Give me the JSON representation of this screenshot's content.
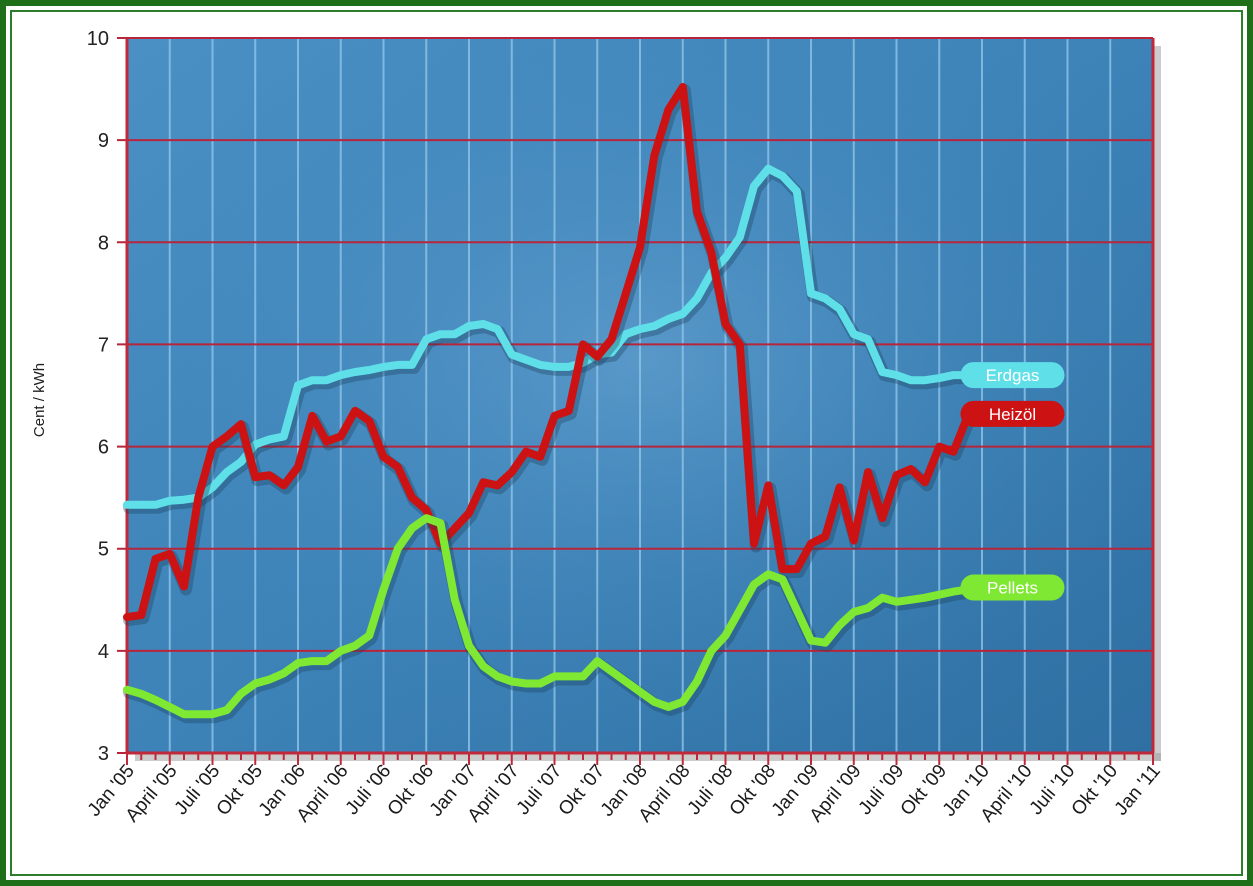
{
  "chart_data": {
    "type": "line",
    "ylabel": "Cent / kWh",
    "ylim": [
      3,
      10
    ],
    "yticks": [
      3,
      4,
      5,
      6,
      7,
      8,
      9,
      10
    ],
    "xticks": [
      "Jan '05",
      "April '05",
      "Juli '05",
      "Okt '05",
      "Jan '06",
      "April '06",
      "Juli '06",
      "Okt '06",
      "Jan '07",
      "April '07",
      "Juli '07",
      "Okt '07",
      "Jan '08",
      "April '08",
      "Juli '08",
      "Okt '08",
      "Jan '09",
      "April '09",
      "Juli '09",
      "Okt '09",
      "Jan '10",
      "April '10",
      "Juli '10",
      "Okt '10",
      "Jan '11"
    ],
    "grid": true,
    "colors": {
      "plot_bg": "#3d83b8",
      "grid_h": "#b8243a",
      "grid_v": "#8fc4ea",
      "axis": "#c0283c",
      "frame": "#1f6e1a"
    },
    "series": [
      {
        "name": "Erdgas",
        "color": "#5fe0e8",
        "x": [
          0,
          1,
          2,
          3,
          4,
          5,
          6,
          7,
          8,
          9,
          10,
          11,
          12,
          13,
          14,
          15,
          16,
          17,
          18,
          19,
          20,
          21,
          22,
          23,
          24,
          25,
          26,
          27,
          28,
          29,
          30,
          31,
          32,
          33,
          34,
          35,
          36,
          37,
          38,
          39,
          40,
          41,
          42,
          43,
          44,
          45,
          46,
          47,
          48,
          49,
          50,
          51,
          52,
          53,
          54,
          55,
          56,
          57,
          58,
          59,
          60,
          61,
          62,
          63
        ],
        "values": [
          5.43,
          5.43,
          5.43,
          5.47,
          5.48,
          5.5,
          5.6,
          5.75,
          5.85,
          6.02,
          6.07,
          6.1,
          6.6,
          6.65,
          6.65,
          6.7,
          6.73,
          6.75,
          6.78,
          6.8,
          6.8,
          7.05,
          7.1,
          7.1,
          7.18,
          7.2,
          7.15,
          6.9,
          6.85,
          6.8,
          6.78,
          6.78,
          6.82,
          6.9,
          6.92,
          7.1,
          7.15,
          7.18,
          7.25,
          7.3,
          7.45,
          7.7,
          7.85,
          8.05,
          8.55,
          8.72,
          8.65,
          8.5,
          7.5,
          7.45,
          7.35,
          7.1,
          7.05,
          6.73,
          6.7,
          6.65,
          6.65,
          6.67,
          6.7,
          6.7,
          6.7,
          6.7,
          6.7,
          6.7
        ],
        "label_x": 62
      },
      {
        "name": "Heizöl",
        "color": "#cc1212",
        "x": [
          0,
          1,
          2,
          3,
          4,
          5,
          6,
          7,
          8,
          9,
          10,
          11,
          12,
          13,
          14,
          15,
          16,
          17,
          18,
          19,
          20,
          21,
          22,
          23,
          24,
          25,
          26,
          27,
          28,
          29,
          30,
          31,
          32,
          33,
          34,
          35,
          36,
          37,
          38,
          39,
          40,
          41,
          42,
          43,
          44,
          45,
          46,
          47,
          48,
          49,
          50,
          51,
          52,
          53,
          54,
          55,
          56,
          57,
          58,
          59,
          60,
          61,
          62,
          63
        ],
        "values": [
          4.33,
          4.35,
          4.9,
          4.95,
          4.63,
          5.5,
          6.0,
          6.1,
          6.22,
          5.7,
          5.72,
          5.62,
          5.8,
          6.3,
          6.05,
          6.1,
          6.35,
          6.25,
          5.9,
          5.8,
          5.5,
          5.38,
          5.05,
          5.2,
          5.35,
          5.65,
          5.62,
          5.75,
          5.95,
          5.9,
          6.3,
          6.35,
          7.0,
          6.88,
          7.05,
          7.5,
          7.95,
          8.85,
          9.3,
          9.52,
          8.3,
          7.9,
          7.2,
          7.0,
          5.05,
          5.62,
          4.8,
          4.8,
          5.05,
          5.12,
          5.6,
          5.08,
          5.75,
          5.3,
          5.72,
          5.78,
          5.65,
          6.0,
          5.95,
          6.3,
          6.32,
          6.32,
          6.32,
          6.32
        ],
        "label_x": 62
      },
      {
        "name": "Pellets",
        "color": "#7fe832",
        "x": [
          0,
          1,
          2,
          3,
          4,
          5,
          6,
          7,
          8,
          9,
          10,
          11,
          12,
          13,
          14,
          15,
          16,
          17,
          18,
          19,
          20,
          21,
          22,
          23,
          24,
          25,
          26,
          27,
          28,
          29,
          30,
          31,
          32,
          33,
          34,
          35,
          36,
          37,
          38,
          39,
          40,
          41,
          42,
          43,
          44,
          45,
          46,
          47,
          48,
          49,
          50,
          51,
          52,
          53,
          54,
          55,
          56,
          57,
          58,
          59,
          60,
          61,
          62,
          63
        ],
        "values": [
          3.62,
          3.58,
          3.52,
          3.45,
          3.38,
          3.38,
          3.38,
          3.42,
          3.58,
          3.68,
          3.72,
          3.78,
          3.88,
          3.9,
          3.9,
          4.0,
          4.05,
          4.15,
          4.6,
          5.0,
          5.2,
          5.3,
          5.25,
          4.5,
          4.05,
          3.85,
          3.75,
          3.7,
          3.68,
          3.68,
          3.75,
          3.75,
          3.75,
          3.9,
          3.8,
          3.7,
          3.6,
          3.5,
          3.45,
          3.5,
          3.7,
          4.0,
          4.15,
          4.4,
          4.65,
          4.75,
          4.7,
          4.4,
          4.1,
          4.08,
          4.25,
          4.38,
          4.42,
          4.52,
          4.48,
          4.5,
          4.52,
          4.55,
          4.58,
          4.6,
          4.62,
          4.62,
          4.62,
          4.62
        ],
        "label_x": 62
      }
    ]
  }
}
